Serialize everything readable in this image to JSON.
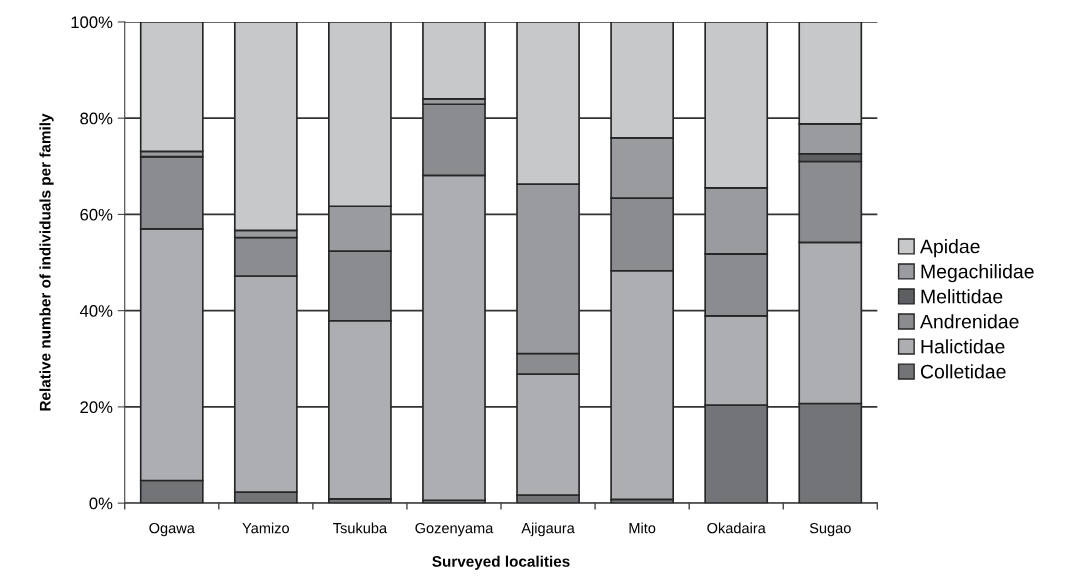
{
  "chart_data": {
    "type": "bar",
    "stacked": true,
    "xlabel": "Surveyed localities",
    "ylabel": "Relative number of individuals per family",
    "categories": [
      "Ogawa",
      "Yamizo",
      "Tsukuba",
      "Gozenyama",
      "Ajigaura",
      "Mito",
      "Okadaira",
      "Sugao"
    ],
    "series": [
      {
        "name": "Colletidae",
        "color": "#737478",
        "values": [
          4.7,
          2.3,
          0.9,
          0.6,
          1.7,
          0.8,
          20.4,
          20.7
        ]
      },
      {
        "name": "Halictidae",
        "color": "#adaeb1",
        "values": [
          52.3,
          44.9,
          37.0,
          67.5,
          25.1,
          47.5,
          18.5,
          33.5
        ]
      },
      {
        "name": "Andrenidae",
        "color": "#8b8c90",
        "values": [
          15.0,
          8.0,
          14.5,
          14.8,
          4.3,
          15.1,
          12.9,
          16.8
        ]
      },
      {
        "name": "Melittidae",
        "color": "#5e5f63",
        "values": [
          null,
          null,
          0,
          0,
          0,
          0,
          0,
          1.6
        ]
      },
      {
        "name": "Megachilidae",
        "color": "#9a9b9f",
        "values": [
          1.1,
          1.5,
          9.3,
          1.1,
          35.2,
          12.5,
          13.7,
          6.2
        ]
      },
      {
        "name": "Apidae",
        "color": "#c7c8ca",
        "values": [
          26.9,
          43.3,
          38.3,
          16.0,
          33.7,
          24.1,
          34.5,
          21.2
        ]
      }
    ],
    "ylim": [
      0,
      100
    ],
    "yticks": [
      {
        "value": 0,
        "label": "0%"
      },
      {
        "value": 20,
        "label": "20%"
      },
      {
        "value": 40,
        "label": "40%"
      },
      {
        "value": 60,
        "label": "60%"
      },
      {
        "value": 80,
        "label": "80%"
      },
      {
        "value": 100,
        "label": "100%"
      }
    ],
    "grid": "y",
    "legend": "right"
  }
}
